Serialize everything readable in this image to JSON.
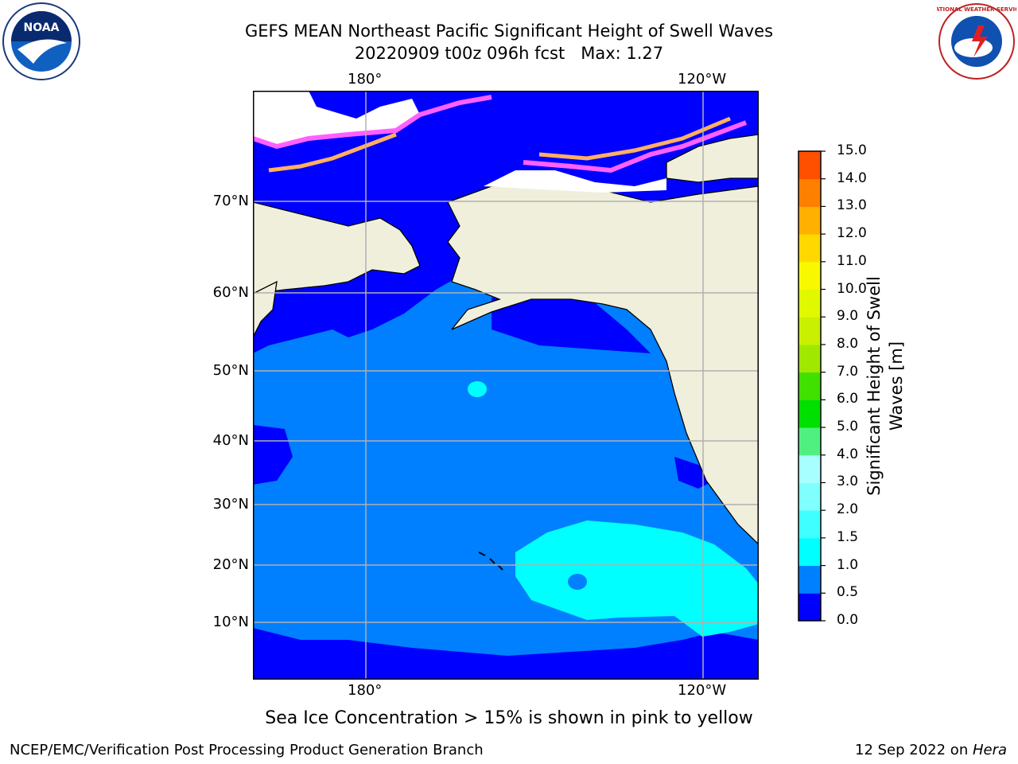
{
  "title": {
    "line1": "GEFS MEAN Northeast Pacific Significant Height of Swell Waves",
    "line2": "20220909 t00z 096h fcst   Max: 1.27"
  },
  "axes": {
    "lon_labels": [
      "180°",
      "120°W"
    ],
    "lat_labels": [
      "70°N",
      "60°N",
      "50°N",
      "40°N",
      "30°N",
      "20°N",
      "10°N"
    ]
  },
  "colorbar": {
    "label_line1": "Significant Height of Swell",
    "label_line2": "Waves [m]",
    "ticks": [
      "15.0",
      "14.0",
      "13.0",
      "12.0",
      "11.0",
      "10.0",
      "9.0",
      "8.0",
      "7.0",
      "6.0",
      "5.0",
      "4.0",
      "3.0",
      "2.0",
      "1.5",
      "1.0",
      "0.5",
      "0.0"
    ],
    "colors_bottom_to_top": [
      "#0000ff",
      "#0080ff",
      "#00ffff",
      "#40ffff",
      "#80ffff",
      "#a8ffff",
      "#50f080",
      "#00e000",
      "#40e000",
      "#a0e800",
      "#c8f000",
      "#e0f800",
      "#f8f800",
      "#ffd800",
      "#ffb000",
      "#ff8000",
      "#ff5000",
      "#ff2000",
      "#ff0000"
    ]
  },
  "map_colors": {
    "land": "#efefdc",
    "swell_low": "#0000ff",
    "swell_mid": "#0080ff",
    "swell_high": "#00ffff",
    "ice_pink": "#ff60ff",
    "ice_orange": "#ffb060"
  },
  "logos": {
    "noaa_text": "NOAA",
    "nws_text": "NATIONAL WEATHER SERVICE"
  },
  "footnote": "Sea Ice Concentration > 15% is shown in pink to yellow",
  "credit": "NCEP/EMC/Verification Post Processing Product Generation Branch",
  "date_text": "12 Sep 2022 on ",
  "host": "Hera"
}
